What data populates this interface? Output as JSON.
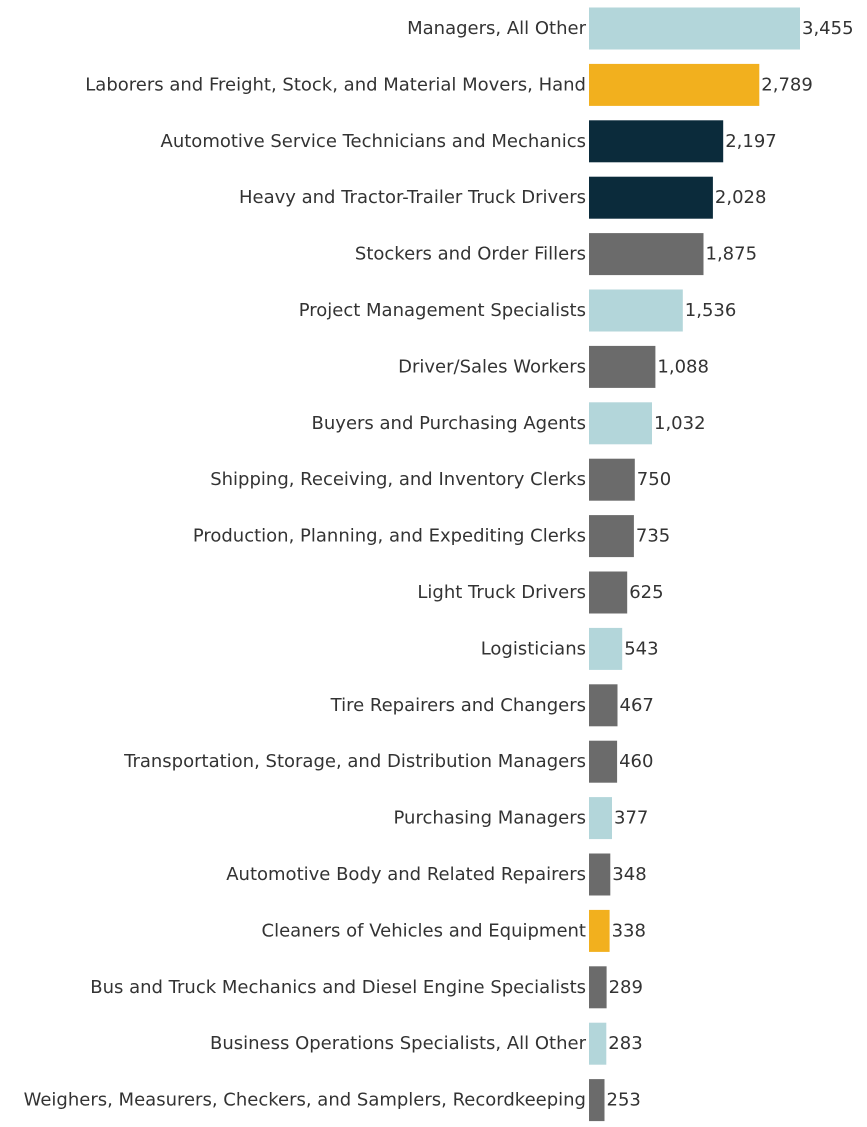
{
  "chart_data": {
    "type": "bar",
    "orientation": "horizontal",
    "title": "",
    "xlabel": "",
    "ylabel": "",
    "grid": false,
    "xlim": [
      0,
      3455
    ],
    "categories": [
      "Managers, All Other",
      "Laborers and Freight, Stock, and Material Movers, Hand",
      "Automotive Service Technicians and Mechanics",
      "Heavy and Tractor-Trailer Truck Drivers",
      "Stockers and Order Fillers",
      "Project Management Specialists",
      "Driver/Sales Workers",
      "Buyers and Purchasing Agents",
      "Shipping, Receiving, and Inventory Clerks",
      "Production, Planning, and Expediting Clerks",
      "Light Truck Drivers",
      "Logisticians",
      "Tire Repairers and Changers",
      "Transportation, Storage, and Distribution Managers",
      "Purchasing Managers",
      "Automotive Body and Related Repairers",
      "Cleaners of Vehicles and Equipment",
      "Bus and Truck Mechanics and Diesel Engine Specialists",
      "Business Operations Specialists, All Other",
      "Weighers, Measurers, Checkers, and Samplers, Recordkeeping"
    ],
    "values": [
      3455,
      2789,
      2197,
      2028,
      1875,
      1536,
      1088,
      1032,
      750,
      735,
      625,
      543,
      467,
      460,
      377,
      348,
      338,
      289,
      283,
      253
    ],
    "value_labels": [
      "3,455",
      "2,789",
      "2,197",
      "2,028",
      "1,875",
      "1,536",
      "1,088",
      "1,032",
      "750",
      "735",
      "625",
      "543",
      "467",
      "460",
      "377",
      "348",
      "338",
      "289",
      "283",
      "253"
    ],
    "color_groups": [
      "lightblue",
      "gold",
      "navy",
      "navy",
      "gray",
      "lightblue",
      "gray",
      "lightblue",
      "gray",
      "gray",
      "gray",
      "lightblue",
      "gray",
      "gray",
      "lightblue",
      "gray",
      "gold",
      "gray",
      "lightblue",
      "gray"
    ]
  },
  "colors": {
    "lightblue": "#b3d6da",
    "gold": "#f2b01e",
    "navy": "#0b2b3b",
    "gray": "#6b6b6b",
    "text": "#333333"
  }
}
